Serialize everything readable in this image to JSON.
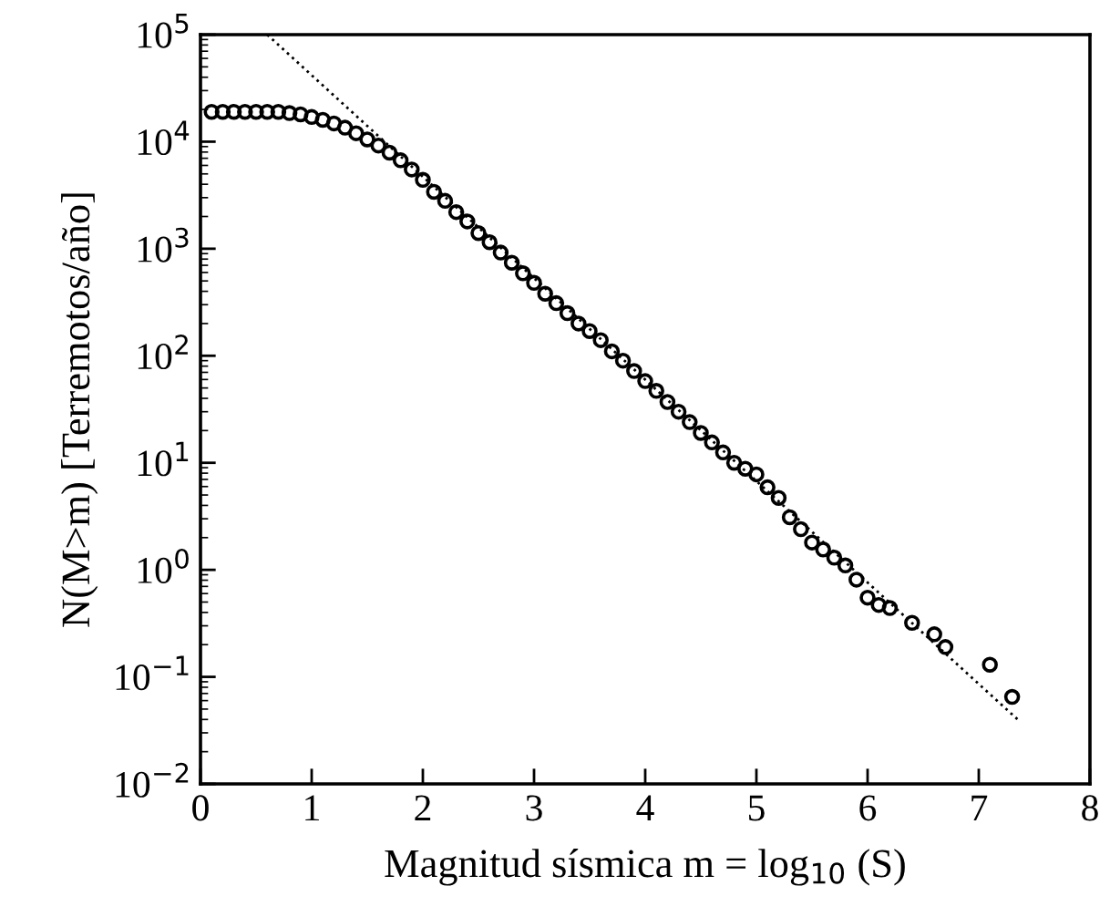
{
  "chart_data": {
    "type": "scatter",
    "xlabel": "Magnitud sísmica m = log$_{10}$ (S)",
    "ylabel": "N(M>m) [Terremotos/año]",
    "log": "y",
    "grid": false,
    "legend": false,
    "xlim": [
      0,
      8
    ],
    "xticks": [
      0,
      1,
      2,
      3,
      4,
      5,
      6,
      7,
      8
    ],
    "ylim": [
      0.01,
      100000
    ],
    "yticks": [
      {
        "value": 0.01,
        "label": "10$^{−2}$"
      },
      {
        "value": 0.1,
        "label": "10$^{−1}$"
      },
      {
        "value": 1,
        "label": "10$^{0}$"
      },
      {
        "value": 10,
        "label": "10$^{1}$"
      },
      {
        "value": 100,
        "label": "10$^{2}$"
      },
      {
        "value": 1000,
        "label": "10$^{3}$"
      },
      {
        "value": 10000,
        "label": "10$^{4}$"
      },
      {
        "value": 100000,
        "label": "10$^{5}$"
      }
    ],
    "series": [
      {
        "marker": "circle",
        "color": "#000000",
        "x": [
          0.1,
          0.2,
          0.3,
          0.4,
          0.5,
          0.6,
          0.7,
          0.8,
          0.9,
          1.0,
          1.1,
          1.2,
          1.3,
          1.4,
          1.5,
          1.6,
          1.7,
          1.8,
          1.9,
          2.0,
          2.1,
          2.2,
          2.3,
          2.4,
          2.5,
          2.6,
          2.7,
          2.8,
          2.9,
          3.0,
          3.1,
          3.2,
          3.3,
          3.4,
          3.5,
          3.6,
          3.7,
          3.8,
          3.9,
          4.0,
          4.1,
          4.2,
          4.3,
          4.4,
          4.5,
          4.6,
          4.7,
          4.8,
          4.9,
          5.0,
          5.1,
          5.2,
          5.3,
          5.4,
          5.5,
          5.6,
          5.7,
          5.8,
          5.9,
          6.0,
          6.1,
          6.2,
          6.4,
          6.6,
          6.7,
          7.1,
          7.3
        ],
        "values": [
          19000,
          19000,
          19000,
          19000,
          19000,
          19000,
          19000,
          18500,
          18000,
          17000,
          16000,
          14800,
          13500,
          12000,
          10500,
          9200,
          7900,
          6700,
          5500,
          4400,
          3400,
          2800,
          2200,
          1800,
          1400,
          1150,
          920,
          740,
          590,
          480,
          380,
          310,
          250,
          200,
          170,
          140,
          110,
          90,
          72,
          58,
          47,
          37,
          30,
          24,
          19,
          15.5,
          12.5,
          10,
          8.8,
          7.8,
          5.9,
          4.7,
          3.1,
          2.4,
          1.8,
          1.55,
          1.3,
          1.1,
          0.81,
          0.55,
          0.47,
          0.44,
          0.32,
          0.25,
          0.19,
          0.13,
          0.065
        ]
      },
      {
        "type": "line",
        "line_style": "dotted",
        "color": "#000000",
        "marker": "none",
        "x": [
          0.6,
          7.35
        ],
        "values": [
          100000,
          0.04
        ]
      }
    ]
  }
}
